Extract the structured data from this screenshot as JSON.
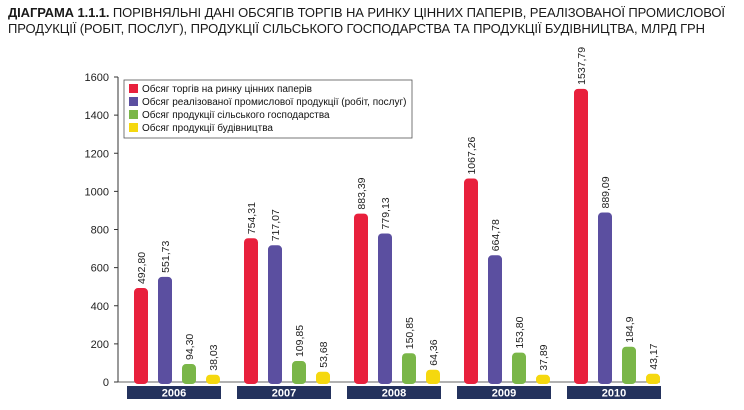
{
  "title": {
    "prefix": "ДІАГРАМА 1.1.1.",
    "text": "ПОРІВНЯЛЬНІ ДАНІ ОБСЯГІВ ТОРГІВ НА РИНКУ ЦІННИХ ПАПЕРІВ, РЕАЛІЗОВАНОЇ ПРОМИСЛОВОЇ ПРОДУКЦІЇ (РОБІТ, ПОСЛУГ), ПРОДУКЦІЇ СІЛЬСЬКОГО ГОСПОДАРСТВА ТА ПРОДУКЦІЇ БУДІВНИЦТВА, МЛРД ГРН"
  },
  "chart_data": {
    "type": "bar",
    "categories": [
      "2006",
      "2007",
      "2008",
      "2009",
      "2010"
    ],
    "ylim": [
      0,
      1600
    ],
    "yticks": [
      "0",
      "200",
      "400",
      "600",
      "800",
      "1000",
      "1200",
      "1400",
      "1600"
    ],
    "grid": false,
    "legend_position": "top-left",
    "series": [
      {
        "name": "Обсяг торгів на ринку цінних паперів",
        "color": "#e8203c",
        "values": [
          492.8,
          754.31,
          883.39,
          1067.26,
          1537.79
        ],
        "labels": [
          "492,80",
          "754,31",
          "883,39",
          "1067,26",
          "1537,79"
        ]
      },
      {
        "name": "Обсяг реалізованої промислової продукції (робіт, послуг)",
        "color": "#5b4fa0",
        "values": [
          551.73,
          717.07,
          779.13,
          664.78,
          889.09
        ],
        "labels": [
          "551,73",
          "717,07",
          "779,13",
          "664,78",
          "889,09"
        ]
      },
      {
        "name": "Обсяг продукції сільського господарства",
        "color": "#7ab648",
        "values": [
          94.3,
          109.85,
          150.85,
          153.8,
          184.9
        ],
        "labels": [
          "94,30",
          "109,85",
          "150,85",
          "153,80",
          "184,9"
        ]
      },
      {
        "name": "Обсяг продукції будівництва",
        "color": "#f5d80f",
        "values": [
          38.03,
          53.68,
          64.36,
          37.89,
          43.17
        ],
        "labels": [
          "38,03",
          "53,68",
          "64,36",
          "37,89",
          "43,17"
        ]
      }
    ]
  }
}
